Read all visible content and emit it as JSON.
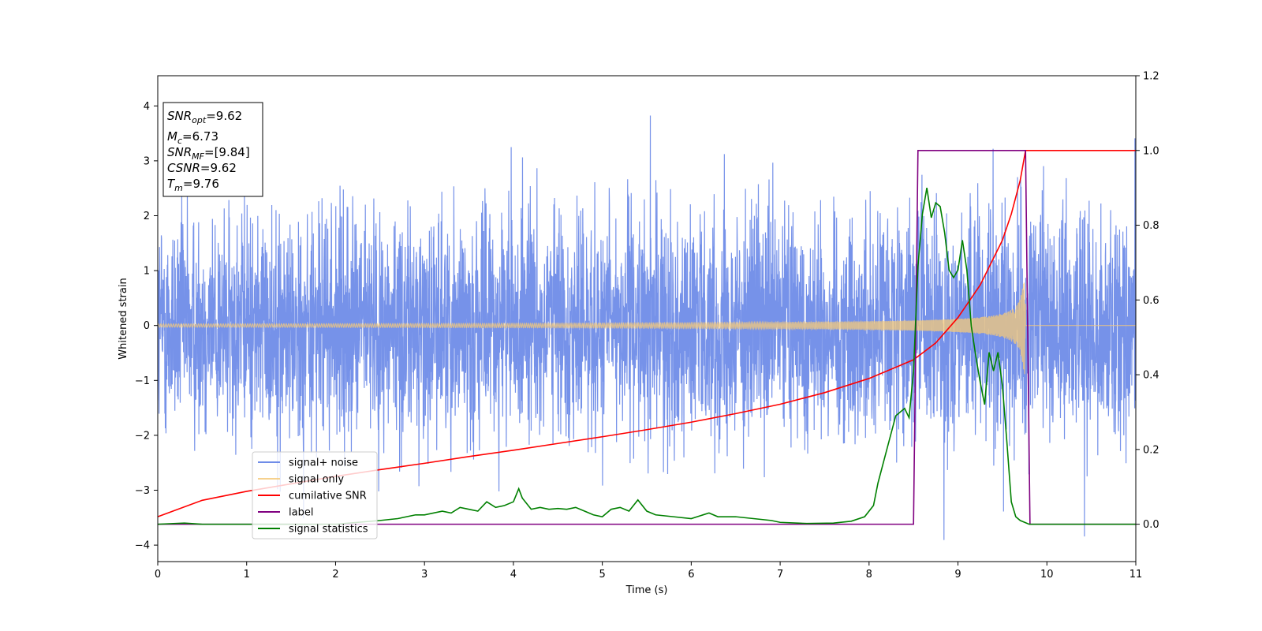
{
  "chart_data": {
    "type": "line",
    "xlabel": "Time (s)",
    "ylabel": "Whitened strain",
    "xlim": [
      0,
      11
    ],
    "ylim": [
      -4.3,
      4.55
    ],
    "y2lim": [
      -0.1,
      1.2
    ],
    "xticks": [
      0,
      1,
      2,
      3,
      4,
      5,
      6,
      7,
      8,
      9,
      10,
      11
    ],
    "yticks": [
      -4,
      -3,
      -2,
      -1,
      0,
      1,
      2,
      3,
      4
    ],
    "y2ticks": [
      0.0,
      0.2,
      0.4,
      0.6,
      0.8,
      1.0,
      1.2
    ],
    "grid": false,
    "legend_position": "lower-left",
    "annotation_box": {
      "lines": [
        {
          "base": "SNR",
          "sub": "opt",
          "rest": "=9.62"
        },
        {
          "base": "M",
          "sub": "c",
          "rest": "=6.73"
        },
        {
          "base": "SNR",
          "sub": "MF",
          "rest": "=[9.84]"
        },
        {
          "base": "CSNR",
          "sub": "",
          "rest": "=9.62"
        },
        {
          "base": "T",
          "sub": "m",
          "rest": "=9.76"
        }
      ]
    },
    "series": [
      {
        "name": "signal+ noise",
        "color": "#6f8ce8",
        "axis": "left",
        "kind": "noise",
        "sample_rate_hz": 400,
        "noise_std": 1.0,
        "spike_max": 4.2,
        "x_range": [
          0,
          11
        ]
      },
      {
        "name": "signal only",
        "color": "#f5c97a",
        "axis": "left",
        "kind": "chirp",
        "amplitude_start": 0.03,
        "amplitude_peak": 1.0,
        "merger_time": 9.76,
        "x_range": [
          0,
          11
        ]
      },
      {
        "name": "cumilative SNR",
        "color": "#ff0000",
        "axis": "right",
        "x": [
          0.0,
          0.5,
          1.0,
          1.5,
          2.0,
          2.5,
          3.0,
          3.5,
          4.0,
          4.5,
          5.0,
          5.5,
          6.0,
          6.5,
          7.0,
          7.5,
          8.0,
          8.5,
          8.75,
          9.0,
          9.25,
          9.5,
          9.6,
          9.7,
          9.76,
          9.8,
          10.5,
          11.0
        ],
        "y": [
          0.02,
          0.064,
          0.088,
          0.108,
          0.128,
          0.146,
          0.163,
          0.181,
          0.198,
          0.216,
          0.234,
          0.253,
          0.273,
          0.296,
          0.321,
          0.352,
          0.39,
          0.44,
          0.485,
          0.553,
          0.64,
          0.76,
          0.83,
          0.92,
          1.0,
          1.0,
          1.0,
          1.0
        ]
      },
      {
        "name": "label",
        "color": "#800080",
        "axis": "right",
        "x": [
          0.0,
          8.5,
          8.55,
          9.76,
          9.81,
          11.0
        ],
        "y": [
          0.0,
          0.0,
          1.0,
          1.0,
          0.0,
          0.0
        ]
      },
      {
        "name": "signal statistics",
        "color": "#008000",
        "axis": "right",
        "x": [
          0.0,
          0.3,
          0.5,
          1.0,
          2.0,
          2.5,
          2.7,
          2.9,
          3.0,
          3.2,
          3.3,
          3.4,
          3.5,
          3.6,
          3.7,
          3.8,
          3.9,
          4.0,
          4.06,
          4.1,
          4.2,
          4.3,
          4.4,
          4.5,
          4.6,
          4.7,
          4.8,
          4.9,
          5.0,
          5.1,
          5.2,
          5.3,
          5.4,
          5.5,
          5.6,
          5.8,
          6.0,
          6.2,
          6.3,
          6.5,
          6.7,
          6.9,
          7.0,
          7.3,
          7.6,
          7.8,
          7.95,
          8.05,
          8.1,
          8.2,
          8.3,
          8.4,
          8.45,
          8.5,
          8.55,
          8.6,
          8.65,
          8.7,
          8.75,
          8.8,
          8.85,
          8.9,
          8.95,
          9.0,
          9.05,
          9.1,
          9.15,
          9.2,
          9.25,
          9.3,
          9.35,
          9.4,
          9.45,
          9.5,
          9.55,
          9.6,
          9.65,
          9.7,
          9.75,
          9.8,
          10.0,
          11.0
        ],
        "y": [
          0.0,
          0.003,
          0.0,
          0.0,
          0.0,
          0.01,
          0.015,
          0.025,
          0.025,
          0.035,
          0.03,
          0.045,
          0.04,
          0.035,
          0.06,
          0.045,
          0.05,
          0.06,
          0.095,
          0.07,
          0.04,
          0.045,
          0.04,
          0.042,
          0.04,
          0.045,
          0.035,
          0.025,
          0.02,
          0.04,
          0.045,
          0.035,
          0.065,
          0.035,
          0.025,
          0.02,
          0.015,
          0.03,
          0.02,
          0.02,
          0.015,
          0.01,
          0.005,
          0.002,
          0.003,
          0.008,
          0.02,
          0.05,
          0.11,
          0.2,
          0.29,
          0.31,
          0.285,
          0.41,
          0.69,
          0.83,
          0.9,
          0.82,
          0.86,
          0.85,
          0.78,
          0.68,
          0.66,
          0.68,
          0.76,
          0.68,
          0.53,
          0.45,
          0.38,
          0.32,
          0.46,
          0.41,
          0.46,
          0.37,
          0.22,
          0.06,
          0.02,
          0.01,
          0.005,
          0.0,
          0.0,
          0.0
        ]
      }
    ]
  }
}
